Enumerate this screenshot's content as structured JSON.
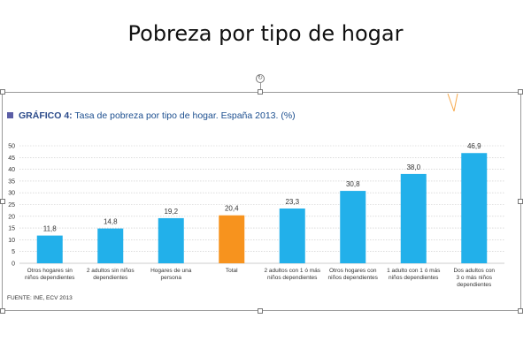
{
  "slide": {
    "title": "Pobreza por tipo de hogar"
  },
  "chart_header": {
    "label": "GRÁFICO 4:",
    "text": "Tasa de pobreza por tipo de hogar. España 2013. (%)"
  },
  "source": "FUENTE: INE, ECV 2013",
  "colors": {
    "bar": "#22b0ea",
    "highlight": "#f7931e",
    "grid": "#c8c8c8",
    "header_square": "#5b5ea6"
  },
  "chart_data": {
    "type": "bar",
    "title": "Tasa de pobreza por tipo de hogar. España 2013. (%)",
    "categories": [
      [
        "Otros hogares sin",
        "niños dependientes"
      ],
      [
        "2 adultos sin niños",
        "dependientes"
      ],
      [
        "Hogares de una",
        "persona"
      ],
      [
        "Total"
      ],
      [
        "2 adultos con 1 ó más",
        "niños dependientes"
      ],
      [
        "Otros hogares con",
        "niños dependientes"
      ],
      [
        "1 adulto con 1 ó más",
        "niños dependientes"
      ],
      [
        "Dos adultos con",
        "3 o más niños",
        "dependientes"
      ]
    ],
    "values": [
      11.8,
      14.8,
      19.2,
      20.4,
      23.3,
      30.8,
      38.0,
      46.9
    ],
    "value_labels": [
      "11,8",
      "14,8",
      "19,2",
      "20,4",
      "23,3",
      "30,8",
      "38,0",
      "46,9"
    ],
    "highlight_index": 3,
    "ylim": [
      0,
      50
    ],
    "yticks": [
      0,
      5,
      10,
      15,
      20,
      25,
      30,
      35,
      40,
      45,
      50
    ],
    "grid": true,
    "xlabel": "",
    "ylabel": ""
  }
}
